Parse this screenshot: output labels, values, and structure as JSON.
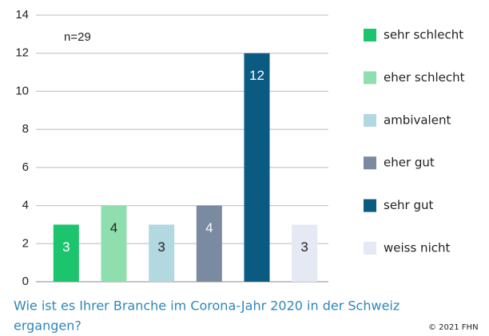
{
  "chart_data": {
    "type": "bar",
    "annotation": "n=29",
    "categories": [
      "sehr schlecht",
      "eher schlecht",
      "ambivalent",
      "eher gut",
      "sehr gut",
      "weiss nicht"
    ],
    "values": [
      3,
      4,
      3,
      4,
      12,
      3
    ],
    "colors": [
      "#1dc46e",
      "#8fdfae",
      "#b2d8e0",
      "#7a8aa1",
      "#0b5a82",
      "#e4e9f3"
    ],
    "ylim": [
      0,
      14
    ],
    "yticks": [
      0,
      2,
      4,
      6,
      8,
      10,
      12,
      14
    ],
    "grid": true,
    "legend": "right",
    "caption": [
      "Wie ist es Ihrer Branche im Corona-Jahr 2020 in der Schweiz",
      "ergangen?"
    ],
    "copyright": "© 2021 FHN"
  }
}
